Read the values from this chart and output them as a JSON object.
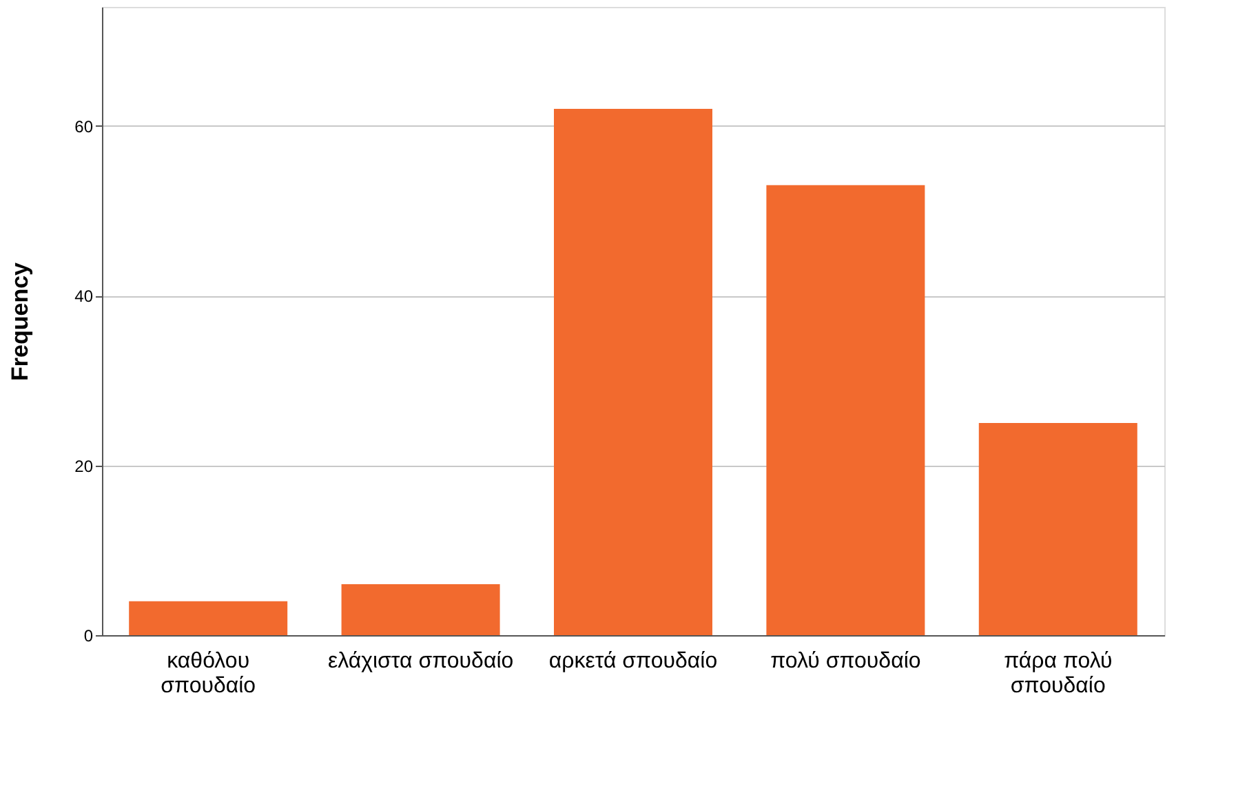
{
  "chart_data": {
    "type": "bar",
    "categories": [
      "καθόλου\nσπουδαίο",
      "ελάχιστα σπουδαίο",
      "αρκετά σπουδαίο",
      "πολύ σπουδαίο",
      "πάρα πολύ\nσπουδαίο"
    ],
    "values": [
      4,
      6,
      62,
      53,
      25
    ],
    "color": "#f26a2e",
    "ylabel": "Frequency",
    "ylim": [
      0,
      74
    ],
    "yticks": [
      0,
      20,
      40,
      60
    ],
    "grid": "y"
  }
}
